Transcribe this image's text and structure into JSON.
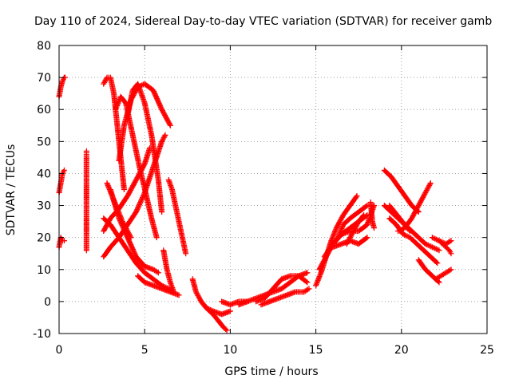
{
  "chart_data": {
    "type": "scatter",
    "title": "Day 110 of 2024, Sidereal Day-to-day VTEC variation (SDTVAR) for receiver gamb",
    "xlabel": "GPS time / hours",
    "ylabel": "SDTVAR / TECUs",
    "xlim": [
      0,
      25
    ],
    "ylim": [
      -10,
      80
    ],
    "xticks": [
      "0",
      "5",
      "10",
      "15",
      "20",
      "25"
    ],
    "yticks": [
      "-10",
      "0",
      "10",
      "20",
      "30",
      "40",
      "50",
      "60",
      "70",
      "80"
    ],
    "grid": true,
    "marker": "+",
    "color": "#ff0000",
    "series": [
      {
        "name": "arc-01",
        "x": [
          0.0,
          0.1,
          0.2,
          0.3,
          0.35
        ],
        "y": [
          64,
          67,
          69,
          70,
          70
        ]
      },
      {
        "name": "arc-02",
        "x": [
          0.0,
          0.1,
          0.2,
          0.3
        ],
        "y": [
          34,
          37,
          40,
          41
        ]
      },
      {
        "name": "arc-03",
        "x": [
          0.0,
          0.1,
          0.2,
          0.3
        ],
        "y": [
          17,
          20,
          19,
          19
        ]
      },
      {
        "name": "arc-04",
        "x": [
          1.6,
          1.6,
          1.6,
          1.6
        ],
        "y": [
          47,
          45.5,
          37,
          16
        ]
      },
      {
        "name": "arc-05",
        "x": [
          2.6,
          2.8,
          3.0,
          3.2,
          3.4,
          3.6,
          3.8
        ],
        "y": [
          68,
          70,
          70,
          65,
          55,
          45,
          35
        ]
      },
      {
        "name": "arc-06",
        "x": [
          2.6,
          3.0,
          3.5,
          4.0,
          4.5,
          5.0,
          5.5,
          6.0,
          6.2
        ],
        "y": [
          14,
          17,
          20,
          24,
          28,
          34,
          42,
          50,
          52
        ]
      },
      {
        "name": "arc-07",
        "x": [
          2.6,
          3.0,
          3.5,
          4.0,
          4.5,
          5.0,
          5.3
        ],
        "y": [
          22,
          26,
          29,
          33,
          38,
          43,
          48
        ]
      },
      {
        "name": "arc-08",
        "x": [
          2.6,
          3.0,
          3.5,
          4.0,
          4.5,
          5.0,
          5.5,
          6.0,
          6.4,
          6.6
        ],
        "y": [
          26,
          24,
          20,
          16,
          12,
          9,
          7,
          5,
          4,
          3
        ]
      },
      {
        "name": "arc-09",
        "x": [
          2.8,
          3.1,
          3.4,
          3.7,
          4.0,
          4.2
        ],
        "y": [
          37,
          33,
          29,
          25,
          22,
          20
        ]
      },
      {
        "name": "arc-10",
        "x": [
          3.5,
          3.8,
          4.2,
          4.6,
          5.0,
          5.5,
          6.0,
          6.5
        ],
        "y": [
          44,
          55,
          63,
          67,
          68,
          66,
          60,
          55
        ]
      },
      {
        "name": "arc-11",
        "x": [
          3.3,
          3.6,
          3.9,
          4.3,
          4.7,
          5.1,
          5.4,
          5.7
        ],
        "y": [
          60,
          64,
          62,
          52,
          42,
          33,
          26,
          20
        ]
      },
      {
        "name": "arc-12",
        "x": [
          3.0,
          3.5,
          4.0,
          4.5,
          5.0,
          5.5,
          5.8
        ],
        "y": [
          35,
          26,
          20,
          14,
          11,
          10,
          9
        ]
      },
      {
        "name": "arc-13",
        "x": [
          4.0,
          4.3,
          4.6,
          5.0,
          5.4,
          5.8,
          6.0
        ],
        "y": [
          58,
          66,
          68,
          62,
          52,
          38,
          28
        ]
      },
      {
        "name": "arc-14",
        "x": [
          4.6,
          5.0,
          5.5,
          6.0,
          6.5,
          7.0
        ],
        "y": [
          8,
          6,
          5,
          4,
          3,
          2
        ]
      },
      {
        "name": "arc-15",
        "x": [
          6.4,
          6.6,
          6.8,
          7.0,
          7.2,
          7.4
        ],
        "y": [
          38,
          35,
          30,
          25,
          20,
          15
        ]
      },
      {
        "name": "arc-16",
        "x": [
          6.1,
          6.3,
          6.5,
          6.7
        ],
        "y": [
          16,
          10,
          6,
          3
        ]
      },
      {
        "name": "arc-17",
        "x": [
          7.8,
          8.0,
          8.3,
          8.6,
          9.0,
          9.5,
          10.0
        ],
        "y": [
          7,
          3,
          0,
          -2,
          -3,
          -4,
          -3
        ]
      },
      {
        "name": "arc-18",
        "x": [
          8.3,
          8.6,
          9.0,
          9.3,
          9.6,
          9.8
        ],
        "y": [
          0,
          -2,
          -4,
          -6,
          -8,
          -9
        ]
      },
      {
        "name": "arc-19",
        "x": [
          9.5,
          10.0,
          10.5,
          11.0
        ],
        "y": [
          0,
          -1,
          0,
          0
        ]
      },
      {
        "name": "arc-20",
        "x": [
          10.5,
          11.0,
          11.5,
          12.0,
          12.5,
          13.0,
          13.5,
          14.0,
          14.5
        ],
        "y": [
          -1,
          0,
          1,
          2,
          3,
          4,
          6,
          8,
          9
        ]
      },
      {
        "name": "arc-21",
        "x": [
          11.5,
          12.0,
          12.5,
          13.0,
          13.5,
          14.0,
          14.5
        ],
        "y": [
          0,
          1,
          4,
          7,
          8,
          8,
          6
        ]
      },
      {
        "name": "arc-22",
        "x": [
          11.8,
          12.3,
          12.8,
          13.3,
          13.8,
          14.3,
          14.6
        ],
        "y": [
          -1,
          0,
          1,
          2,
          3,
          3,
          4
        ]
      },
      {
        "name": "arc-23",
        "x": [
          15.0,
          15.3,
          15.6,
          15.9,
          16.2,
          16.6,
          17.0,
          17.4
        ],
        "y": [
          5,
          9,
          14,
          19,
          23,
          27,
          30,
          33
        ]
      },
      {
        "name": "arc-24",
        "x": [
          15.2,
          15.6,
          16.0,
          16.5,
          17.0,
          17.5,
          18.0
        ],
        "y": [
          10,
          14,
          18,
          21,
          23,
          25,
          27
        ]
      },
      {
        "name": "arc-25",
        "x": [
          15.5,
          16.0,
          16.5,
          17.0,
          17.5,
          18.0,
          18.4
        ],
        "y": [
          14,
          18,
          21,
          22,
          22,
          24,
          30
        ]
      },
      {
        "name": "arc-26",
        "x": [
          16.3,
          16.6,
          17.0,
          17.5,
          18.0
        ],
        "y": [
          20,
          24,
          26,
          28,
          30
        ]
      },
      {
        "name": "arc-27",
        "x": [
          16.0,
          16.5,
          17.0,
          17.5,
          18.0
        ],
        "y": [
          17,
          18,
          19,
          18,
          20
        ]
      },
      {
        "name": "arc-28",
        "x": [
          16.8,
          17.0,
          17.2,
          17.5,
          17.8
        ],
        "y": [
          18,
          20,
          22,
          25,
          27
        ]
      },
      {
        "name": "arc-29",
        "x": [
          18.2,
          18.3,
          18.4
        ],
        "y": [
          31,
          25,
          23
        ]
      },
      {
        "name": "arc-30",
        "x": [
          19.0,
          19.4,
          19.8,
          20.2,
          20.6,
          21.0
        ],
        "y": [
          41,
          39,
          36,
          33,
          30,
          28
        ]
      },
      {
        "name": "arc-31",
        "x": [
          19.0,
          19.4,
          19.8,
          20.2,
          20.6,
          21.0,
          21.4,
          21.8,
          22.2
        ],
        "y": [
          30,
          28,
          26,
          24,
          22,
          20,
          18,
          17,
          16
        ]
      },
      {
        "name": "arc-32",
        "x": [
          19.3,
          19.7,
          20.1,
          20.5,
          20.9,
          21.3,
          21.7,
          22.1
        ],
        "y": [
          26,
          24,
          21,
          20,
          18,
          16,
          14,
          12
        ]
      },
      {
        "name": "arc-33",
        "x": [
          19.3,
          19.6,
          19.9,
          20.2,
          20.5
        ],
        "y": [
          30,
          28,
          26,
          24,
          22
        ]
      },
      {
        "name": "arc-34",
        "x": [
          19.8,
          20.2,
          20.6,
          21.0,
          21.4,
          21.7
        ],
        "y": [
          22,
          23,
          26,
          30,
          34,
          37
        ]
      },
      {
        "name": "arc-35",
        "x": [
          21.0,
          21.4,
          21.8,
          22.2
        ],
        "y": [
          13,
          10,
          8,
          6
        ]
      },
      {
        "name": "arc-36",
        "x": [
          22.0,
          22.3,
          22.6,
          22.9
        ],
        "y": [
          7,
          8,
          9,
          10
        ]
      },
      {
        "name": "arc-37",
        "x": [
          21.8,
          22.2,
          22.6,
          22.9
        ],
        "y": [
          20,
          19,
          18,
          19
        ]
      },
      {
        "name": "arc-38",
        "x": [
          22.2,
          22.4,
          22.6,
          22.8,
          22.9
        ],
        "y": [
          19,
          18,
          17,
          16,
          15
        ]
      }
    ]
  }
}
